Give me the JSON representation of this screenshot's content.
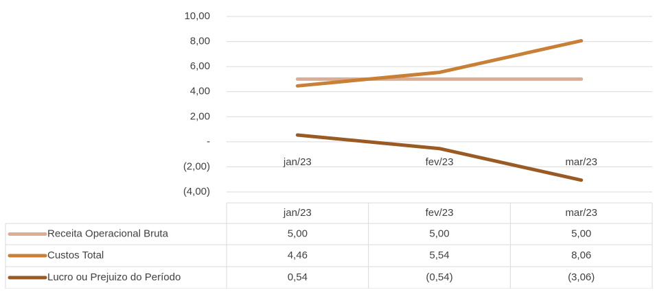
{
  "chart_data": {
    "type": "line",
    "categories": [
      "jan/23",
      "fev/23",
      "mar/23"
    ],
    "series": [
      {
        "name": "Receita Operacional Bruta",
        "color": "#dbae94",
        "values": [
          5.0,
          5.0,
          5.0
        ],
        "value_labels": [
          "5,00",
          "5,00",
          "5,00"
        ]
      },
      {
        "name": "Custos Total",
        "color": "#c87f36",
        "values": [
          4.46,
          5.54,
          8.06
        ],
        "value_labels": [
          "4,46",
          "5,54",
          "8,06"
        ]
      },
      {
        "name": "Lucro ou Prejuizo do Período",
        "color": "#9a5a24",
        "values": [
          0.54,
          -0.54,
          -3.06
        ],
        "value_labels": [
          "0,54",
          "(0,54)",
          "(3,06)"
        ]
      }
    ],
    "ylim": [
      -4,
      10
    ],
    "yticks": [
      {
        "value": -4,
        "label": "(4,00)"
      },
      {
        "value": -2,
        "label": "(2,00)"
      },
      {
        "value": 0,
        "label": "-"
      },
      {
        "value": 2,
        "label": "2,00"
      },
      {
        "value": 4,
        "label": "4,00"
      },
      {
        "value": 6,
        "label": "6,00"
      },
      {
        "value": 8,
        "label": "8,00"
      },
      {
        "value": 10,
        "label": "10,00"
      }
    ],
    "grid": true,
    "data_table": true
  }
}
